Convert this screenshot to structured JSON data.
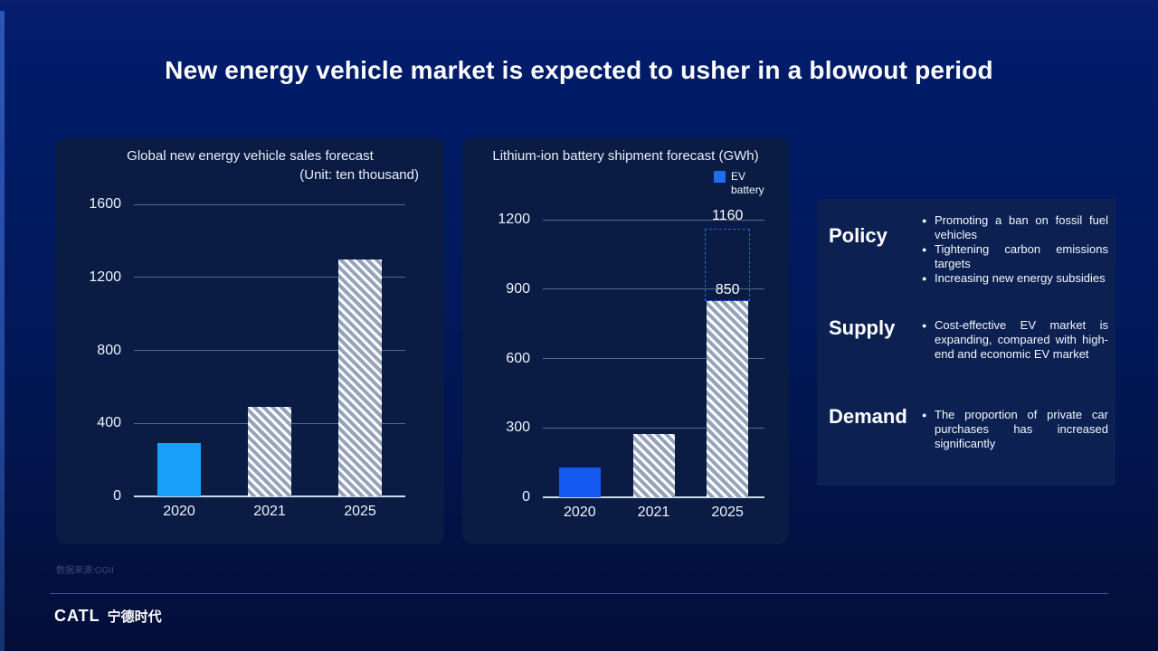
{
  "slide": {
    "title": "New energy vehicle market is expected to usher in a blowout period",
    "footer": {
      "data_source": "数据来源:GGII",
      "logo_text": "CATL",
      "logo_cn": "宁德时代"
    },
    "theme": {
      "page_top": "#001c69",
      "page_bottom": "#030e38",
      "card_bg": "#0a1c44",
      "panel_bg": "#0c2152",
      "accent_strip": "#2e55b8"
    }
  },
  "chart_data": [
    {
      "type": "bar",
      "title": "Global new energy vehicle sales forecast",
      "unit_label": "(Unit: ten thousand)",
      "categories": [
        "2020",
        "2021",
        "2025"
      ],
      "values": [
        290,
        490,
        1300
      ],
      "bar_styles": [
        "solid",
        "hatched",
        "hatched"
      ],
      "bar_color": "#18a0fb",
      "hatch_colors": [
        "#ffffff",
        "#95a3bb"
      ],
      "ylim": [
        0,
        1600
      ],
      "yticks": [
        0,
        400,
        800,
        1200,
        1600
      ],
      "grid": true,
      "legend_position": "none"
    },
    {
      "type": "bar",
      "title": "Lithium-ion battery shipment forecast (GWh)",
      "legend": [
        {
          "label": "EV battery",
          "color": "#1b6cf2"
        }
      ],
      "categories": [
        "2020",
        "2021",
        "2025"
      ],
      "values": [
        130,
        275,
        850
      ],
      "bar_styles": [
        "solid",
        "hatched",
        "hatched"
      ],
      "bar_color": "#155af0",
      "hatch_colors": [
        "#ffffff",
        "#95a3bb"
      ],
      "ylim": [
        0,
        1200
      ],
      "yticks": [
        0,
        300,
        600,
        900,
        1200
      ],
      "grid": true,
      "legend_position": "top-right",
      "annotation": {
        "category": "2025",
        "from": 850,
        "to": 1160,
        "top_label": "1160",
        "mid_label": "850",
        "border_color": "#2b5fe8"
      }
    }
  ],
  "panel": {
    "sections": [
      {
        "heading": "Policy",
        "bullets": [
          "Promoting a ban on fossil fuel vehicles",
          "Tightening carbon emissions targets",
          "Increasing new energy subsidies"
        ]
      },
      {
        "heading": "Supply",
        "bullets": [
          "Cost-effective EV market is expanding, compared with high-end and economic EV market"
        ]
      },
      {
        "heading": "Demand",
        "bullets": [
          "The proportion of private car purchases has increased significantly"
        ]
      }
    ]
  }
}
